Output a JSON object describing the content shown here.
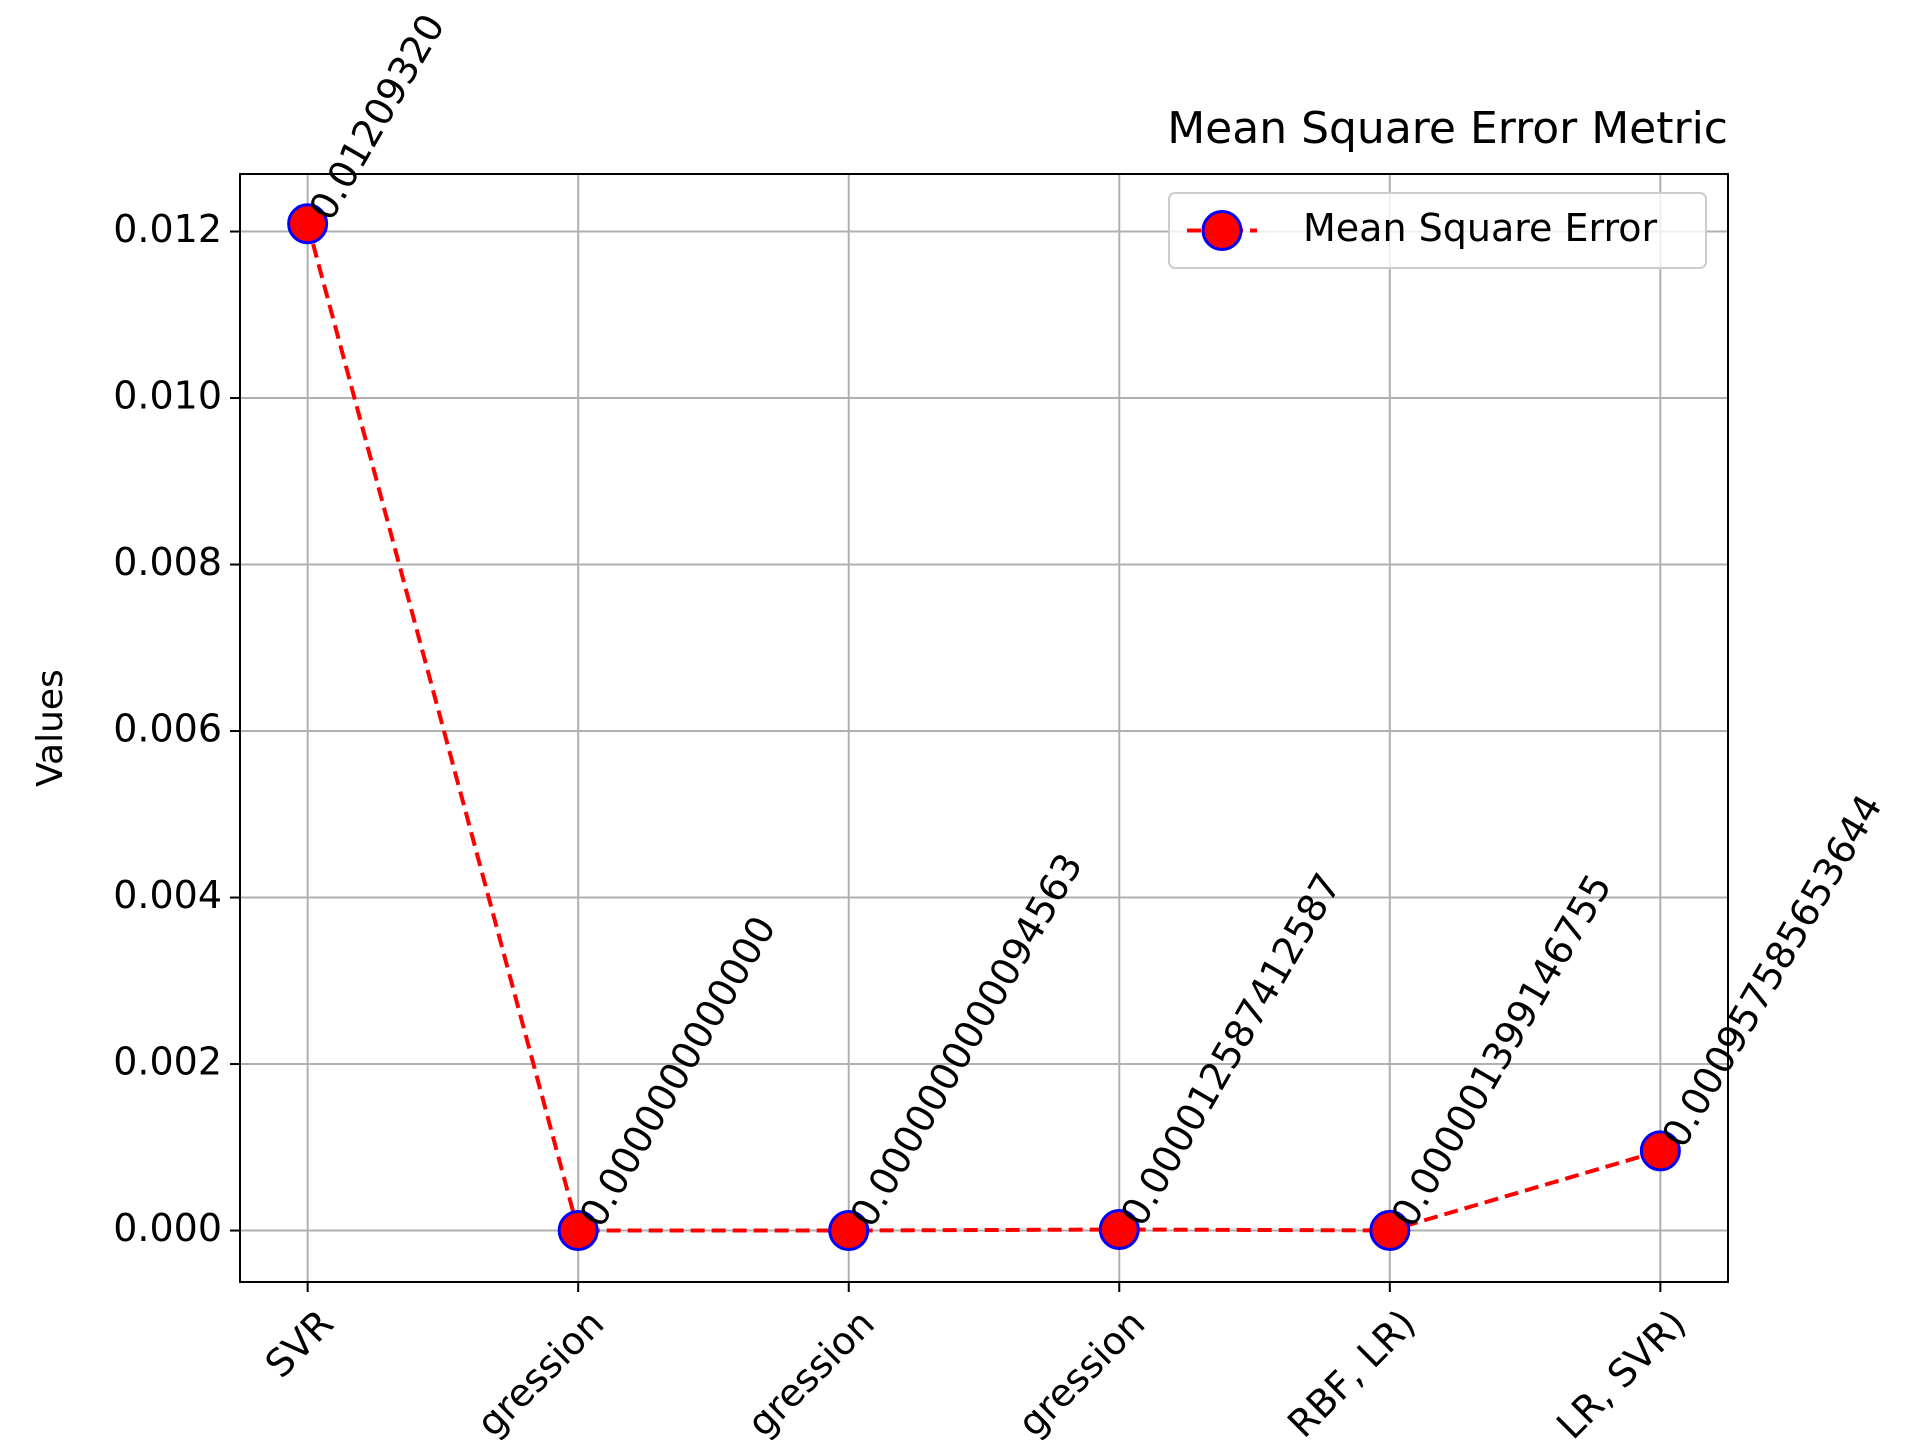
{
  "chart_data": {
    "type": "line",
    "title": "Mean Square Error Metric",
    "y_label": "Values",
    "categories": [
      "SVR",
      "gression",
      "gression",
      "gression",
      "RBF, LR)",
      "LR, SVR)"
    ],
    "series": [
      {
        "name": "Mean Square Error",
        "color": "#ff0000",
        "marker_edge": "#0000ff",
        "values": [
          0.0120932,
          0,
          9.4563e-12,
          1.2587412587e-05,
          1.399146755e-06,
          0.000957585653644
        ],
        "value_labels": [
          "0.01209320",
          "0.0000000000000",
          "0.0000000000094563",
          "0.000012587412587",
          "0.000001399146755",
          "0.000957585653644"
        ]
      }
    ],
    "ylim": [
      -0.000618,
      0.012691
    ],
    "yticks": [
      {
        "value": 0,
        "label": "0.000"
      },
      {
        "value": 0.002,
        "label": "0.002"
      },
      {
        "value": 0.004,
        "label": "0.004"
      },
      {
        "value": 0.006,
        "label": "0.006"
      },
      {
        "value": 0.008,
        "label": "0.008"
      },
      {
        "value": 0.01,
        "label": "0.010"
      },
      {
        "value": 0.012,
        "label": "0.012"
      }
    ],
    "grid": true,
    "legend": "upper right"
  }
}
